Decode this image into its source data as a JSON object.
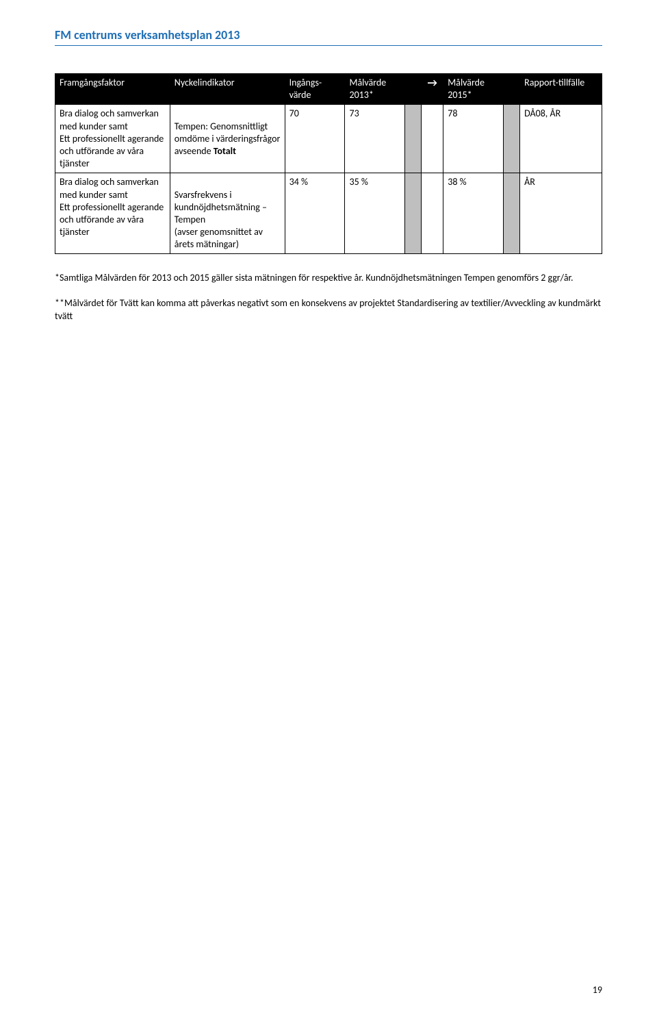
{
  "header": {
    "title": "FM centrums verksamhetsplan 2013"
  },
  "table": {
    "headers": {
      "framgangsfaktor": "Framgångsfaktor",
      "nyckelindikator": "Nyckelindikator",
      "ingangsvarde": "Ingångs-värde",
      "malvarde2013": "Målvärde 2013*",
      "arrow": "→",
      "malvarde2015": "Målvärde 2015*",
      "rapporttillfalle": "Rapport-tillfälle"
    },
    "rows": [
      {
        "framgang": "Bra dialog och samverkan med kunder samt\nEtt professionellt agerande och utförande av våra tjänster",
        "nyckel_pre": "Tempen: Genomsnittligt omdöme i värderingsfrågor avseende ",
        "nyckel_bold": "Totalt",
        "ingang": "70",
        "m2013": "73",
        "m2015": "78",
        "rapport": "DÅ08, ÅR"
      },
      {
        "framgang": "Bra dialog och samverkan med kunder samt\nEtt professionellt agerande och utförande av våra tjänster",
        "nyckel_pre": "Svarsfrekvens i kundnöjdhetsmätning – Tempen\n(avser genomsnittet av årets mätningar)",
        "nyckel_bold": "",
        "ingang": "34 %",
        "m2013": "35 %",
        "m2015": "38 %",
        "rapport": "ÅR"
      }
    ]
  },
  "notes": {
    "n1": "*Samtliga Målvärden för 2013 och 2015 gäller sista mätningen för respektive år. Kundnöjdhetsmätningen Tempen genomförs 2 ggr/år.",
    "n2": "**Målvärdet för Tvätt kan komma att påverkas negativt som en konsekvens av projektet Standardisering av textilier/Avveckling av kundmärkt tvätt"
  },
  "page_number": "19"
}
